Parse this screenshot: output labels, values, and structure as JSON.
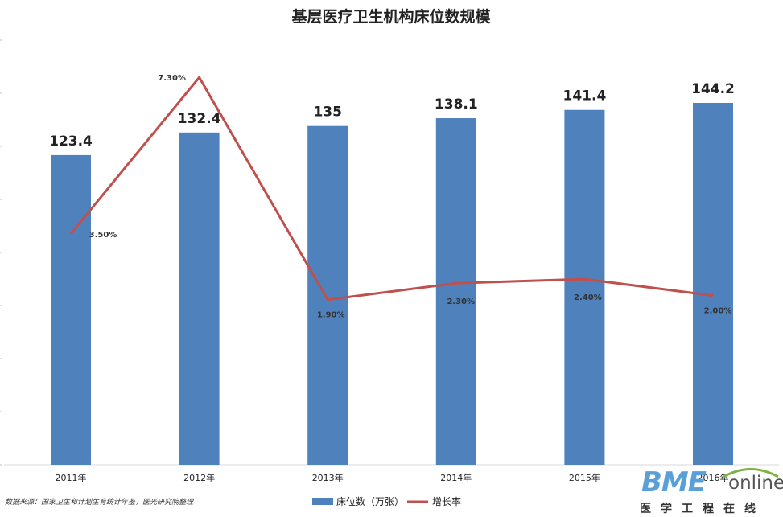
{
  "chart_data": {
    "type": "bar",
    "title": "基层医疗卫生机构床位数规模",
    "categories": [
      "2011年",
      "2012年",
      "2013年",
      "2014年",
      "2015年",
      "2016年"
    ],
    "series": [
      {
        "name": "床位数（万张）",
        "kind": "bar",
        "values": [
          123.4,
          132.4,
          135,
          138.1,
          141.4,
          144.2
        ],
        "labels": [
          "123.4",
          "132.4",
          "135",
          "138.1",
          "141.4",
          "144.2"
        ],
        "color": "#4f81bd"
      },
      {
        "name": "增长率",
        "kind": "line",
        "values": [
          3.5,
          7.3,
          1.9,
          2.3,
          2.4,
          2.0
        ],
        "labels": [
          "3.50%",
          "7.30%",
          "1.90%",
          "2.30%",
          "2.40%",
          "2.00%"
        ],
        "color": "#c0504d"
      }
    ],
    "legend_position": "bottom",
    "grid": false
  },
  "footer": {
    "source": "数据来源：国家卫生和计划生育统计年鉴，医光研究院整理"
  },
  "logo": {
    "main": "BME",
    "online": "online",
    "sub": "医学工程在线"
  }
}
